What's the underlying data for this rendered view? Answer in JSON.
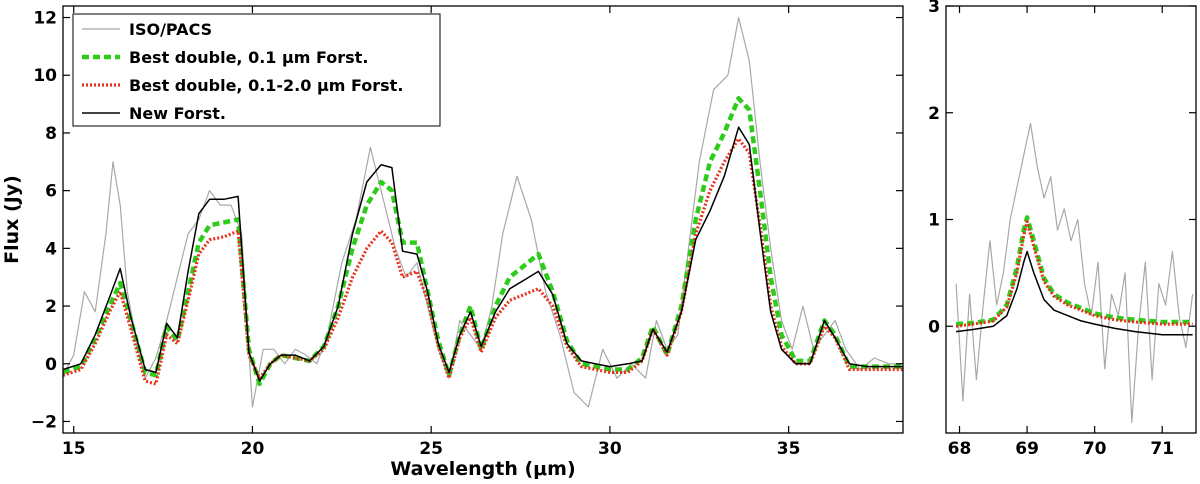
{
  "chart_data": [
    {
      "type": "line",
      "xlabel": "Wavelength (μm)",
      "ylabel": "Flux (Jy)",
      "xlim": [
        14.7,
        38.2
      ],
      "ylim": [
        -2.4,
        12.4
      ],
      "xticks": [
        "15",
        "20",
        "25",
        "30",
        "35"
      ],
      "yticks": [
        "−2",
        "0",
        "2",
        "4",
        "6",
        "8",
        "10",
        "12"
      ],
      "xtick_values": [
        15,
        20,
        25,
        30,
        35
      ],
      "ytick_values": [
        -2,
        0,
        2,
        4,
        6,
        8,
        10,
        12
      ],
      "legend": {
        "placement": "top-left"
      },
      "series": [
        {
          "name": "ISO/PACS",
          "color": "#a8a8a8",
          "x": [
            14.7,
            15.0,
            15.3,
            15.6,
            15.9,
            16.1,
            16.3,
            16.5,
            16.8,
            17.0,
            17.3,
            17.6,
            17.9,
            18.2,
            18.5,
            18.8,
            19.1,
            19.4,
            19.7,
            20.0,
            20.3,
            20.6,
            20.9,
            21.2,
            21.5,
            21.8,
            22.1,
            22.5,
            22.9,
            23.3,
            23.7,
            24.0,
            24.3,
            24.6,
            24.9,
            25.2,
            25.5,
            25.8,
            26.1,
            26.4,
            26.7,
            27.0,
            27.4,
            27.8,
            28.2,
            28.6,
            29.0,
            29.4,
            29.8,
            30.2,
            30.6,
            31.0,
            31.3,
            31.6,
            31.9,
            32.2,
            32.5,
            32.9,
            33.3,
            33.6,
            33.9,
            34.2,
            34.5,
            34.8,
            35.1,
            35.4,
            35.7,
            36.0,
            36.3,
            36.6,
            37.0,
            37.4,
            37.8,
            38.2
          ],
          "y": [
            -0.4,
            0.3,
            2.5,
            1.8,
            4.5,
            7.0,
            5.5,
            2.5,
            0.5,
            -0.5,
            0.2,
            1.5,
            3.0,
            4.5,
            5.0,
            6.0,
            5.5,
            5.5,
            4.5,
            -1.5,
            0.5,
            0.5,
            0.0,
            0.5,
            0.3,
            0.0,
            1.0,
            3.5,
            5.0,
            7.5,
            5.5,
            4.0,
            3.0,
            3.5,
            2.0,
            0.5,
            -0.5,
            1.5,
            1.0,
            0.5,
            2.0,
            4.5,
            6.5,
            5.0,
            2.5,
            1.0,
            -1.0,
            -1.5,
            0.5,
            -0.5,
            0.0,
            -0.5,
            1.5,
            0.5,
            1.0,
            4.0,
            7.0,
            9.5,
            10.0,
            12.0,
            10.5,
            7.0,
            4.0,
            1.5,
            0.5,
            2.0,
            0.5,
            1.0,
            1.5,
            0.5,
            -0.2,
            0.2,
            0.0,
            0.0
          ]
        },
        {
          "name": "Best double, 0.1 μm Forst.",
          "color": "#2ecc1a",
          "x": [
            14.7,
            15.2,
            15.6,
            16.0,
            16.3,
            16.6,
            17.0,
            17.3,
            17.6,
            17.9,
            18.2,
            18.5,
            18.8,
            19.2,
            19.6,
            19.9,
            20.2,
            20.5,
            20.8,
            21.2,
            21.6,
            22.0,
            22.4,
            22.8,
            23.2,
            23.6,
            23.9,
            24.2,
            24.6,
            24.9,
            25.2,
            25.5,
            25.8,
            26.1,
            26.4,
            26.8,
            27.2,
            27.6,
            28.0,
            28.4,
            28.8,
            29.2,
            29.6,
            30.0,
            30.5,
            30.9,
            31.2,
            31.6,
            32.0,
            32.4,
            32.8,
            33.2,
            33.6,
            33.9,
            34.2,
            34.5,
            34.8,
            35.2,
            35.6,
            36.0,
            36.3,
            36.7,
            37.2,
            37.7,
            38.2
          ],
          "y": [
            -0.3,
            -0.1,
            0.9,
            2.0,
            2.8,
            1.5,
            -0.3,
            -0.4,
            1.3,
            0.8,
            2.5,
            4.2,
            4.8,
            4.9,
            5.0,
            0.5,
            -0.7,
            0.0,
            0.3,
            0.2,
            0.1,
            0.6,
            2.0,
            4.0,
            5.5,
            6.3,
            6.0,
            4.2,
            4.2,
            2.5,
            0.8,
            -0.4,
            1.0,
            2.0,
            0.5,
            2.0,
            3.0,
            3.4,
            3.8,
            2.5,
            0.8,
            0.0,
            -0.1,
            -0.2,
            -0.2,
            0.2,
            1.3,
            0.3,
            2.0,
            5.0,
            7.0,
            8.0,
            9.2,
            8.8,
            6.0,
            3.0,
            1.0,
            0.1,
            0.1,
            1.5,
            1.0,
            -0.1,
            -0.1,
            -0.1,
            -0.1
          ]
        },
        {
          "name": "Best double, 0.1-2.0 μm Forst.",
          "color": "#e8321e",
          "x": [
            14.7,
            15.2,
            15.6,
            16.0,
            16.3,
            16.6,
            17.0,
            17.3,
            17.6,
            17.9,
            18.2,
            18.5,
            18.8,
            19.2,
            19.6,
            19.9,
            20.2,
            20.5,
            20.8,
            21.2,
            21.6,
            22.0,
            22.4,
            22.8,
            23.2,
            23.6,
            23.9,
            24.2,
            24.6,
            24.9,
            25.2,
            25.5,
            25.8,
            26.1,
            26.4,
            26.8,
            27.2,
            27.6,
            28.0,
            28.4,
            28.8,
            29.2,
            29.6,
            30.0,
            30.5,
            30.9,
            31.2,
            31.6,
            32.0,
            32.4,
            32.8,
            33.2,
            33.6,
            33.9,
            34.2,
            34.5,
            34.8,
            35.2,
            35.6,
            36.0,
            36.3,
            36.7,
            37.2,
            37.7,
            38.2
          ],
          "y": [
            -0.4,
            -0.2,
            0.7,
            1.8,
            2.5,
            1.2,
            -0.6,
            -0.7,
            1.0,
            0.7,
            2.2,
            3.8,
            4.3,
            4.4,
            4.6,
            0.3,
            -0.5,
            0.0,
            0.3,
            0.2,
            0.1,
            0.5,
            1.6,
            3.0,
            4.0,
            4.6,
            4.2,
            3.0,
            3.2,
            2.2,
            0.6,
            -0.5,
            0.9,
            1.6,
            0.4,
            1.6,
            2.2,
            2.4,
            2.6,
            2.0,
            0.6,
            -0.1,
            -0.2,
            -0.3,
            -0.3,
            0.1,
            1.2,
            0.3,
            1.8,
            4.5,
            6.0,
            7.0,
            7.8,
            7.3,
            4.8,
            2.0,
            0.6,
            0.0,
            0.0,
            1.3,
            0.9,
            -0.2,
            -0.2,
            -0.2,
            -0.2
          ]
        },
        {
          "name": "New Forst.",
          "color": "#000000",
          "x": [
            14.7,
            15.2,
            15.6,
            16.0,
            16.3,
            16.6,
            17.0,
            17.3,
            17.6,
            17.9,
            18.2,
            18.5,
            18.8,
            19.2,
            19.6,
            19.9,
            20.2,
            20.5,
            20.8,
            21.2,
            21.6,
            22.0,
            22.4,
            22.8,
            23.2,
            23.6,
            23.9,
            24.2,
            24.6,
            24.9,
            25.2,
            25.5,
            25.8,
            26.1,
            26.4,
            26.8,
            27.2,
            27.6,
            28.0,
            28.4,
            28.8,
            29.2,
            29.6,
            30.0,
            30.5,
            30.9,
            31.2,
            31.6,
            32.0,
            32.4,
            32.8,
            33.2,
            33.6,
            33.9,
            34.2,
            34.5,
            34.8,
            35.2,
            35.6,
            36.0,
            36.3,
            36.7,
            37.2,
            37.7,
            38.2
          ],
          "y": [
            -0.2,
            0.0,
            1.0,
            2.3,
            3.3,
            1.6,
            -0.2,
            -0.3,
            1.4,
            0.9,
            3.2,
            5.2,
            5.7,
            5.7,
            5.8,
            0.4,
            -0.6,
            0.0,
            0.3,
            0.3,
            0.1,
            0.6,
            2.0,
            4.5,
            6.3,
            6.9,
            6.8,
            3.9,
            3.8,
            2.5,
            0.7,
            -0.3,
            1.0,
            1.8,
            0.6,
            1.8,
            2.6,
            2.9,
            3.2,
            2.4,
            0.7,
            0.1,
            0.0,
            -0.1,
            0.0,
            0.1,
            1.2,
            0.4,
            1.8,
            4.3,
            5.3,
            6.5,
            8.2,
            7.6,
            4.6,
            1.8,
            0.5,
            0.0,
            0.0,
            1.5,
            0.9,
            0.0,
            -0.1,
            -0.1,
            -0.1
          ]
        }
      ]
    },
    {
      "type": "line",
      "xlabel": "",
      "ylabel": "",
      "xlim": [
        67.8,
        71.5
      ],
      "ylim": [
        -1.0,
        3.0
      ],
      "xticks": [
        "68",
        "69",
        "70",
        "71"
      ],
      "yticks": [
        "0",
        "1",
        "2",
        "3"
      ],
      "xtick_values": [
        68,
        69,
        70,
        71
      ],
      "ytick_values": [
        0,
        1,
        2,
        3
      ],
      "series": [
        {
          "name": "ISO/PACS",
          "color": "#a8a8a8",
          "x": [
            67.95,
            68.05,
            68.15,
            68.25,
            68.35,
            68.45,
            68.55,
            68.65,
            68.75,
            68.85,
            68.95,
            69.05,
            69.15,
            69.25,
            69.35,
            69.45,
            69.55,
            69.65,
            69.75,
            69.85,
            69.95,
            70.05,
            70.15,
            70.25,
            70.35,
            70.45,
            70.55,
            70.65,
            70.75,
            70.85,
            70.95,
            71.05,
            71.15,
            71.25,
            71.35,
            71.45
          ],
          "y": [
            0.4,
            -0.7,
            0.3,
            -0.5,
            0.2,
            0.8,
            0.2,
            0.5,
            1.0,
            1.3,
            1.6,
            1.9,
            1.5,
            1.2,
            1.4,
            0.9,
            1.1,
            0.8,
            1.0,
            0.4,
            0.1,
            0.6,
            -0.4,
            0.3,
            0.1,
            0.5,
            -0.9,
            0.0,
            0.6,
            -0.5,
            0.4,
            0.2,
            0.7,
            0.1,
            -0.2,
            0.3
          ]
        },
        {
          "name": "Best double, 0.1 μm Forst.",
          "color": "#2ecc1a",
          "x": [
            67.95,
            68.2,
            68.5,
            68.7,
            68.85,
            68.95,
            69.0,
            69.1,
            69.25,
            69.4,
            69.6,
            69.8,
            70.0,
            70.3,
            70.6,
            71.0,
            71.45
          ],
          "y": [
            0.02,
            0.03,
            0.06,
            0.2,
            0.55,
            0.9,
            1.02,
            0.8,
            0.45,
            0.3,
            0.22,
            0.17,
            0.12,
            0.08,
            0.06,
            0.04,
            0.04
          ]
        },
        {
          "name": "Best double, 0.1-2.0 μm Forst.",
          "color": "#e8321e",
          "x": [
            67.95,
            68.2,
            68.5,
            68.7,
            68.85,
            68.95,
            69.0,
            69.1,
            69.25,
            69.4,
            69.6,
            69.8,
            70.0,
            70.3,
            70.6,
            71.0,
            71.45
          ],
          "y": [
            0.0,
            0.02,
            0.05,
            0.18,
            0.5,
            0.85,
            0.98,
            0.75,
            0.42,
            0.28,
            0.2,
            0.15,
            0.1,
            0.06,
            0.04,
            0.02,
            0.02
          ]
        },
        {
          "name": "New Forst.",
          "color": "#000000",
          "x": [
            67.95,
            68.2,
            68.5,
            68.7,
            68.85,
            68.95,
            69.0,
            69.1,
            69.25,
            69.4,
            69.6,
            69.8,
            70.0,
            70.3,
            70.6,
            71.0,
            71.45
          ],
          "y": [
            -0.05,
            -0.03,
            0.0,
            0.1,
            0.35,
            0.6,
            0.7,
            0.5,
            0.25,
            0.15,
            0.1,
            0.05,
            0.02,
            -0.02,
            -0.05,
            -0.08,
            -0.08
          ]
        }
      ]
    }
  ]
}
